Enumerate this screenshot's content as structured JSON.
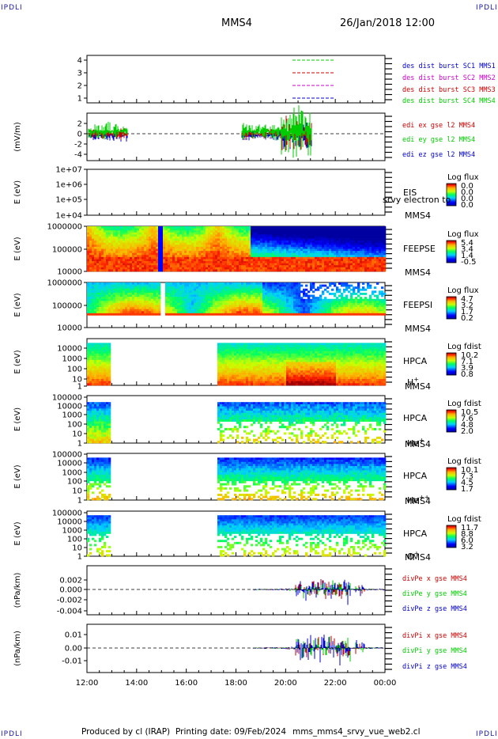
{
  "corner_label": "IPDLI",
  "header": {
    "spacecraft": "MMS4",
    "datetime": "26/Jan/2018 12:00"
  },
  "footer": {
    "produced_by": "Produced by cl (IRAP)",
    "printing_date": "Printing date: 09/Feb/2024",
    "file": "mms_mms4_srvy_vue_web2.cl"
  },
  "colors": {
    "mms1": "#0000cc",
    "mms2": "#cc00cc",
    "mms3": "#cc0000",
    "mms4": "#00cc00",
    "x": "#cc0000",
    "y": "#00cc00",
    "z": "#0000cc"
  },
  "chart_data": {
    "type": "multi-panel",
    "x_ticks": [
      "12:00",
      "14:00",
      "16:00",
      "18:00",
      "20:00",
      "22:00",
      "00:00"
    ],
    "panels": [
      {
        "id": "burst",
        "ylabel": "",
        "yticks": [
          "4",
          "3",
          "2",
          "1"
        ],
        "legend": [
          "des dist burst SC1 MMS1",
          "des dist burst SC2 MMS2",
          "des dist burst SC3 MMS3",
          "des dist burst SC4 MMS4"
        ]
      },
      {
        "id": "efield",
        "ylabel": "(mV/m)",
        "yticks": [
          "2",
          "0",
          "-2",
          "-4"
        ],
        "legend": [
          "edi ex gse l2 MMS4",
          "edi ey gse l2 MMS4",
          "edi ez gse l2 MMS4"
        ]
      },
      {
        "id": "eis",
        "ylabel": "E (eV)",
        "yticks": [
          "1e+07",
          "1e+06",
          "1e+05",
          "1e+04"
        ],
        "right": [
          "EIS",
          "MMS4"
        ],
        "overlay": "srvy electron to",
        "cb_title": "Log flux",
        "cb_ticks": [
          "0.0",
          "0.0",
          "0.0",
          "0.0"
        ]
      },
      {
        "id": "feepse",
        "ylabel": "E (eV)",
        "yticks": [
          "1000000",
          "100000",
          "10000"
        ],
        "right": [
          "FEEPSE",
          "MMS4"
        ],
        "cb_title": "Log flux",
        "cb_ticks": [
          "5.4",
          "3.4",
          "1.4",
          "-0.5"
        ]
      },
      {
        "id": "feepsi",
        "ylabel": "E (eV)",
        "yticks": [
          "1000000",
          "100000",
          "10000"
        ],
        "right": [
          "FEEPSI",
          "MMS4"
        ],
        "cb_title": "Log flux",
        "cb_ticks": [
          "4.7",
          "3.2",
          "1.7",
          "0.2"
        ]
      },
      {
        "id": "hpca_h",
        "ylabel": "E (eV)",
        "yticks": [
          "10000",
          "1000",
          "100",
          "10",
          "1"
        ],
        "right": [
          "HPCA",
          "MMS4"
        ],
        "species": "H",
        "sup": "+",
        "cb_title": "Log fdist",
        "cb_ticks": [
          "10.2",
          "7.1",
          "3.9",
          "0.8"
        ]
      },
      {
        "id": "hpca_he",
        "ylabel": "E (eV)",
        "yticks": [
          "100000",
          "10000",
          "1000",
          "100",
          "10",
          "1"
        ],
        "right": [
          "HPCA",
          "MMS4"
        ],
        "species": "He",
        "sup": "+",
        "cb_title": "Log fdist",
        "cb_ticks": [
          "10.5",
          "7.6",
          "4.8",
          "2.0"
        ]
      },
      {
        "id": "hpca_hepp",
        "ylabel": "E (eV)",
        "yticks": [
          "100000",
          "10000",
          "1000",
          "100",
          "10",
          "1"
        ],
        "right": [
          "HPCA",
          "MMS4"
        ],
        "species": "He",
        "sup": "++",
        "cb_title": "Log fdist",
        "cb_ticks": [
          "10.1",
          "7.3",
          "4.5",
          "1.7"
        ]
      },
      {
        "id": "hpca_o",
        "ylabel": "E (eV)",
        "yticks": [
          "100000",
          "10000",
          "1000",
          "100",
          "10",
          "1"
        ],
        "right": [
          "HPCA",
          "MMS4"
        ],
        "species": "O",
        "sup": "+",
        "cb_title": "Log fdist",
        "cb_ticks": [
          "11.7",
          "8.8",
          "6.0",
          "3.2"
        ]
      },
      {
        "id": "divpe",
        "ylabel": "(nPa/km)",
        "yticks": [
          "0.002",
          "0.000",
          "-0.002",
          "-0.004"
        ],
        "legend": [
          "divPe x gse MMS4",
          "divPe y gse MMS4",
          "divPe z gse MMS4"
        ]
      },
      {
        "id": "divpi",
        "ylabel": "(nPa/km)",
        "yticks": [
          "0.01",
          "0.00",
          "-0.01"
        ],
        "legend": [
          "divPi x gse MMS4",
          "divPi y gse MMS4",
          "divPi z gse MMS4"
        ]
      }
    ]
  }
}
